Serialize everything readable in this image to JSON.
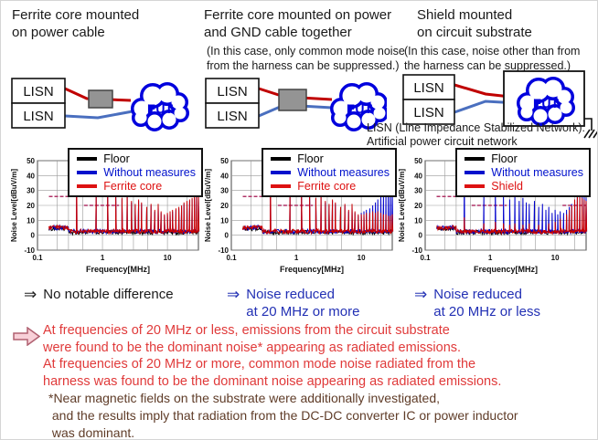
{
  "columns": [
    {
      "title": "Ferrite core mounted\non power cable",
      "note": "",
      "diagram": {
        "lisn_top": "LISN",
        "lisn_bottom": "LISN",
        "eut": "EUT"
      },
      "caption": {
        "arrow": "⇒",
        "text": "No notable difference",
        "color": "#1a1a1a"
      }
    },
    {
      "title": "Ferrite core mounted on power\nand GND cable together",
      "note": "(In this case, only common mode noise\nfrom the harness can be suppressed.)",
      "diagram": {
        "lisn_top": "LISN",
        "lisn_bottom": "LISN",
        "eut": "EUT"
      },
      "caption": {
        "arrow": "⇒",
        "text": "Noise reduced\nat 20 MHz or more",
        "color": "#2230b4"
      }
    },
    {
      "title": "Shield mounted\non circuit substrate",
      "note": "(In this case, noise other than from\nthe harness can be suppressed.)",
      "diagram": {
        "lisn_top": "LISN",
        "lisn_bottom": "LISN",
        "eut": "EUT"
      },
      "caption": {
        "arrow": "⇒",
        "text": "Noise reduced\nat 20 MHz or less",
        "color": "#2230b4"
      }
    }
  ],
  "lisn_definition": "LISN (Line Impedance Stabilized Network):\nArtificial power circuit network",
  "conclusion": {
    "text": "At frequencies of 20 MHz or less, emissions from the circuit substrate\nwere found to be the dominant noise* appearing as radiated emissions.\nAt frequencies of 20 MHz or more, common mode noise radiated from the\nharness was found to be the dominant noise appearing as radiated emissions.",
    "color": "#e03a3a"
  },
  "footnote": {
    "text": "*Near magnetic fields on the substrate were additionally investigated,\n and the results imply that radiation from the DC-DC converter IC or power inductor\n was dominant.",
    "color": "#5f3c28"
  },
  "colors": {
    "wire_power": "#c00000",
    "wire_gnd": "#4a6fbf",
    "eut_blue": "#0000dd",
    "ferrite_gray": "#949494",
    "limit_line": "#b03468"
  },
  "chart_data": [
    {
      "type": "line",
      "title": "",
      "xlabel": "Frequency[MHz]",
      "ylabel": "Noise Level[dBuV/m]",
      "xscale": "log",
      "xlim": [
        0.1,
        30
      ],
      "ylim": [
        -10,
        50
      ],
      "yticks": [
        -10,
        0,
        10,
        20,
        30,
        40,
        50
      ],
      "xticks": [
        {
          "v": 0.1,
          "label": "0.1"
        },
        {
          "v": 1,
          "label": "1"
        },
        {
          "v": 10,
          "label": "10"
        }
      ],
      "grid_x": [
        0.2,
        0.3,
        0.5,
        1,
        2,
        3,
        5,
        10,
        20
      ],
      "legend_position": "top-right",
      "legend": [
        {
          "label": "Floor",
          "color": "#000000"
        },
        {
          "label": "Without measures",
          "color": "#0011cc"
        },
        {
          "label": "Ferrite core",
          "color": "#dd1111"
        }
      ],
      "limit_lines": [
        {
          "y": 26,
          "x1": 0.15,
          "x2": 0.3
        },
        {
          "y": 20,
          "x1": 0.52,
          "x2": 1.8
        }
      ],
      "series": [
        {
          "name": "Floor",
          "color": "#000000",
          "baseline": 2,
          "spikes": []
        },
        {
          "name": "Without measures",
          "color": "#0000cc",
          "baseline": 2.5,
          "spikes": [
            [
              0.4,
              43
            ],
            [
              0.8,
              29
            ],
            [
              1.2,
              31
            ],
            [
              1.6,
              27
            ],
            [
              2,
              24
            ],
            [
              2.4,
              27
            ],
            [
              2.8,
              22
            ],
            [
              3.2,
              20
            ],
            [
              3.6,
              23
            ],
            [
              4,
              21
            ],
            [
              4.8,
              18
            ],
            [
              5.6,
              20
            ],
            [
              6.4,
              16
            ],
            [
              7.2,
              20
            ],
            [
              8,
              15
            ],
            [
              9,
              13
            ],
            [
              10,
              14
            ],
            [
              11,
              15
            ],
            [
              12,
              16
            ],
            [
              13.5,
              17
            ],
            [
              15,
              18
            ],
            [
              16.5,
              19
            ],
            [
              18,
              21
            ],
            [
              20,
              22
            ],
            [
              22,
              23
            ],
            [
              24,
              24
            ],
            [
              26,
              25
            ],
            [
              28,
              26
            ],
            [
              30,
              27
            ]
          ]
        },
        {
          "name": "Ferrite core",
          "color": "#cc0000",
          "baseline": 2.5,
          "spikes": [
            [
              0.4,
              44
            ],
            [
              0.8,
              30
            ],
            [
              1.2,
              32
            ],
            [
              1.6,
              28
            ],
            [
              2,
              25
            ],
            [
              2.4,
              28
            ],
            [
              2.8,
              23
            ],
            [
              3.2,
              21
            ],
            [
              3.6,
              24
            ],
            [
              4,
              22
            ],
            [
              4.8,
              19
            ],
            [
              5.6,
              21
            ],
            [
              6.4,
              17
            ],
            [
              7.2,
              21
            ],
            [
              8,
              16
            ],
            [
              9,
              14
            ],
            [
              10,
              15
            ],
            [
              11,
              16
            ],
            [
              12,
              17
            ],
            [
              13.5,
              18
            ],
            [
              15,
              19
            ],
            [
              16.5,
              20
            ],
            [
              18,
              22
            ],
            [
              20,
              23
            ],
            [
              22,
              24
            ],
            [
              24,
              25
            ],
            [
              26,
              26
            ],
            [
              28,
              27
            ],
            [
              30,
              27
            ]
          ]
        }
      ]
    },
    {
      "type": "line",
      "title": "",
      "xlabel": "Frequency[MHz]",
      "ylabel": "Noise Level[dBuV/m]",
      "xscale": "log",
      "xlim": [
        0.1,
        30
      ],
      "ylim": [
        -10,
        50
      ],
      "yticks": [
        -10,
        0,
        10,
        20,
        30,
        40,
        50
      ],
      "xticks": [
        {
          "v": 0.1,
          "label": "0.1"
        },
        {
          "v": 1,
          "label": "1"
        },
        {
          "v": 10,
          "label": "10"
        }
      ],
      "grid_x": [
        0.2,
        0.3,
        0.5,
        1,
        2,
        3,
        5,
        10,
        20
      ],
      "legend_position": "top-right",
      "legend": [
        {
          "label": "Floor",
          "color": "#000000"
        },
        {
          "label": "Without measures",
          "color": "#0011cc"
        },
        {
          "label": "Ferrite core",
          "color": "#dd1111"
        }
      ],
      "limit_lines": [
        {
          "y": 26,
          "x1": 0.15,
          "x2": 0.3
        },
        {
          "y": 20,
          "x1": 0.52,
          "x2": 1.8
        }
      ],
      "series": [
        {
          "name": "Floor",
          "color": "#000000",
          "baseline": 2,
          "spikes": []
        },
        {
          "name": "Without measures",
          "color": "#0000cc",
          "baseline": 2.5,
          "spikes": [
            [
              0.4,
              43
            ],
            [
              0.8,
              29
            ],
            [
              1.2,
              31
            ],
            [
              1.6,
              27
            ],
            [
              2,
              24
            ],
            [
              2.4,
              27
            ],
            [
              2.8,
              22
            ],
            [
              3.2,
              20
            ],
            [
              3.6,
              23
            ],
            [
              4,
              21
            ],
            [
              4.8,
              18
            ],
            [
              5.6,
              20
            ],
            [
              6.4,
              16
            ],
            [
              7.2,
              20
            ],
            [
              8,
              15
            ],
            [
              9,
              13
            ],
            [
              10,
              15
            ],
            [
              11,
              16
            ],
            [
              12,
              17
            ],
            [
              13.5,
              18
            ],
            [
              15,
              20
            ],
            [
              16.5,
              22
            ],
            [
              18,
              24
            ],
            [
              20,
              26
            ],
            [
              22,
              28
            ],
            [
              24,
              29
            ],
            [
              26,
              30
            ],
            [
              28,
              31
            ],
            [
              30,
              30
            ]
          ]
        },
        {
          "name": "Ferrite core",
          "color": "#cc0000",
          "baseline": 2.5,
          "spikes": [
            [
              0.4,
              44
            ],
            [
              0.8,
              30
            ],
            [
              1.2,
              32
            ],
            [
              1.6,
              28
            ],
            [
              2,
              25
            ],
            [
              2.4,
              28
            ],
            [
              2.8,
              23
            ],
            [
              3.2,
              21
            ],
            [
              3.6,
              24
            ],
            [
              4,
              22
            ],
            [
              4.8,
              19
            ],
            [
              5.6,
              21
            ],
            [
              6.4,
              17
            ],
            [
              7.2,
              21
            ],
            [
              8,
              16
            ],
            [
              9,
              14
            ],
            [
              10,
              14
            ],
            [
              11,
              14
            ],
            [
              12,
              15
            ],
            [
              13.5,
              15
            ],
            [
              15,
              16
            ],
            [
              16.5,
              15
            ],
            [
              18,
              16
            ],
            [
              20,
              15
            ],
            [
              22,
              14
            ],
            [
              24,
              14
            ],
            [
              26,
              13
            ],
            [
              28,
              13
            ],
            [
              30,
              14
            ]
          ]
        }
      ]
    },
    {
      "type": "line",
      "title": "",
      "xlabel": "Frequency[MHz]",
      "ylabel": "Noise Level[dBuV/m]",
      "xscale": "log",
      "xlim": [
        0.1,
        30
      ],
      "ylim": [
        -10,
        50
      ],
      "yticks": [
        -10,
        0,
        10,
        20,
        30,
        40,
        50
      ],
      "xticks": [
        {
          "v": 0.1,
          "label": "0.1"
        },
        {
          "v": 1,
          "label": "1"
        },
        {
          "v": 10,
          "label": "10"
        }
      ],
      "grid_x": [
        0.2,
        0.3,
        0.5,
        1,
        2,
        3,
        5,
        10,
        20
      ],
      "legend_position": "top-right",
      "legend": [
        {
          "label": "Floor",
          "color": "#000000"
        },
        {
          "label": "Without measures",
          "color": "#0011cc"
        },
        {
          "label": "Shield",
          "color": "#dd1111"
        }
      ],
      "limit_lines": [
        {
          "y": 26,
          "x1": 0.15,
          "x2": 0.3
        },
        {
          "y": 20,
          "x1": 0.52,
          "x2": 1.8
        },
        {
          "y": 20,
          "x1": 13,
          "x2": 30
        }
      ],
      "series": [
        {
          "name": "Floor",
          "color": "#000000",
          "baseline": 2,
          "spikes": []
        },
        {
          "name": "Without measures",
          "color": "#0000cc",
          "baseline": 2.5,
          "spikes": [
            [
              0.4,
              44
            ],
            [
              0.8,
              28
            ],
            [
              1.2,
              32
            ],
            [
              1.6,
              27
            ],
            [
              2,
              24
            ],
            [
              2.4,
              27
            ],
            [
              2.8,
              23
            ],
            [
              3.2,
              25
            ],
            [
              3.6,
              22
            ],
            [
              4,
              21
            ],
            [
              4.8,
              23
            ],
            [
              5.6,
              19
            ],
            [
              6.4,
              21
            ],
            [
              7.2,
              17
            ],
            [
              8,
              19
            ],
            [
              9,
              15
            ],
            [
              10,
              17
            ],
            [
              11,
              14
            ],
            [
              12,
              16
            ],
            [
              13.5,
              15
            ],
            [
              15,
              17
            ],
            [
              16.5,
              19
            ],
            [
              18,
              21
            ],
            [
              20,
              24
            ],
            [
              22,
              26
            ],
            [
              24,
              27
            ],
            [
              26,
              28
            ],
            [
              28,
              26
            ],
            [
              30,
              25
            ]
          ]
        },
        {
          "name": "Shield",
          "color": "#cc0000",
          "baseline": 2.5,
          "spikes": [
            [
              0.4,
              12
            ],
            [
              0.8,
              8
            ],
            [
              1.2,
              9
            ],
            [
              1.6,
              8
            ],
            [
              2,
              7
            ],
            [
              2.4,
              8
            ],
            [
              3.2,
              7
            ],
            [
              4,
              8
            ],
            [
              5.6,
              7
            ],
            [
              8,
              8
            ],
            [
              10,
              9
            ],
            [
              12,
              11
            ],
            [
              15,
              14
            ],
            [
              16.5,
              17
            ],
            [
              18,
              20
            ],
            [
              20,
              24
            ],
            [
              22,
              26
            ],
            [
              24,
              27
            ],
            [
              26,
              25
            ],
            [
              28,
              24
            ],
            [
              30,
              23
            ]
          ]
        }
      ]
    }
  ]
}
